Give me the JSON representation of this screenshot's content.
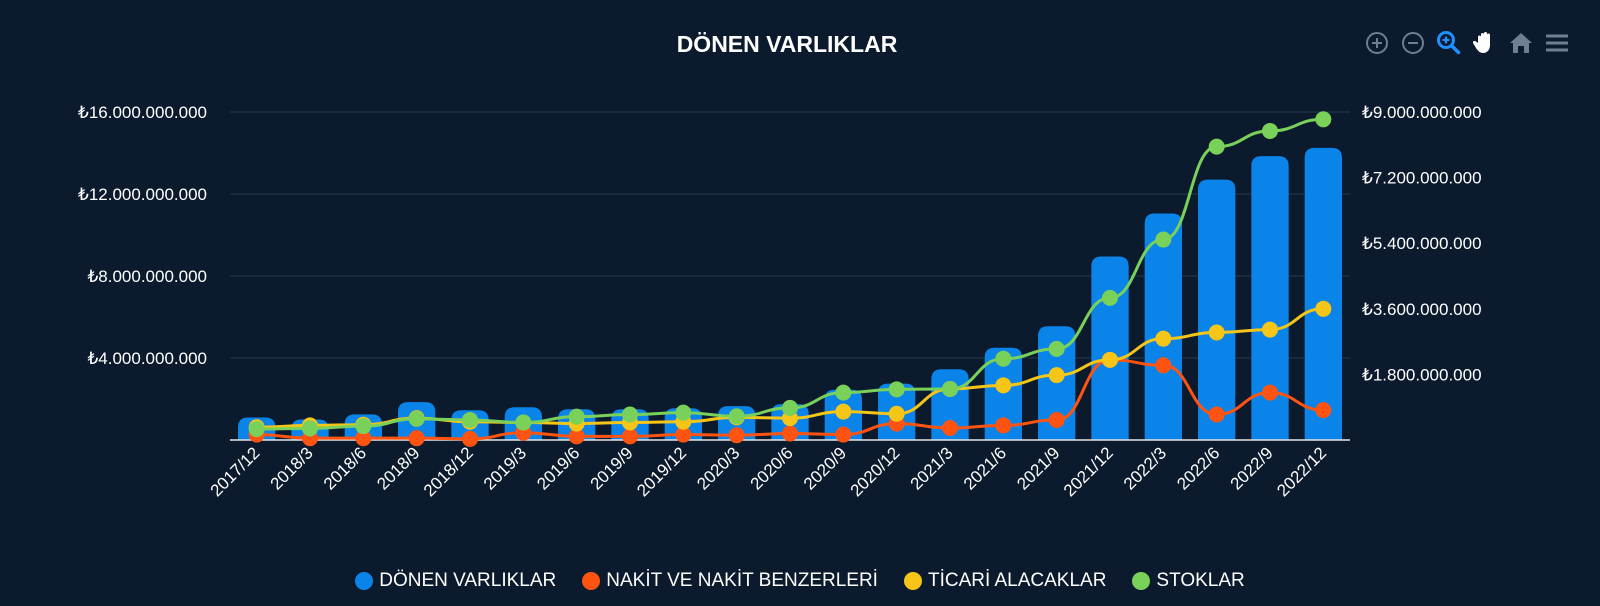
{
  "chart_data": {
    "type": "bar",
    "title": "DÖNEN VARLIKLAR",
    "categories": [
      "2017/12",
      "2018/3",
      "2018/6",
      "2018/9",
      "2018/12",
      "2019/3",
      "2019/6",
      "2019/9",
      "2019/12",
      "2020/3",
      "2020/6",
      "2020/9",
      "2020/12",
      "2021/3",
      "2021/6",
      "2021/9",
      "2021/12",
      "2022/3",
      "2022/6",
      "2022/9",
      "2022/12"
    ],
    "left_axis": {
      "min": 0,
      "max": 16000000000,
      "ticks": [
        "₺4.000.000.000",
        "₺8.000.000.000",
        "₺12.000.000.000",
        "₺16.000.000.000"
      ],
      "tick_values": [
        4000000000,
        8000000000,
        12000000000,
        16000000000
      ]
    },
    "right_axis": {
      "min": 0,
      "max": 9000000000,
      "ticks": [
        "₺1.800.000.000",
        "₺3.600.000.000",
        "₺5.400.000.000",
        "₺7.200.000.000",
        "₺9.000.000.000"
      ],
      "tick_values": [
        1800000000,
        3600000000,
        5400000000,
        7200000000,
        9000000000
      ]
    },
    "grid": true,
    "legend_position": "bottom-center",
    "series": [
      {
        "name": "DÖNEN VARLIKLAR",
        "type": "bar",
        "axis": "left",
        "color": "#0a84e8",
        "values": [
          1100000000,
          1000000000,
          1250000000,
          1850000000,
          1450000000,
          1600000000,
          1500000000,
          1500000000,
          1550000000,
          1650000000,
          1750000000,
          2450000000,
          2750000000,
          3450000000,
          4500000000,
          5550000000,
          8950000000,
          11050000000,
          12700000000,
          13850000000,
          14250000000
        ]
      },
      {
        "name": "NAKİT VE NAKİT BENZERLERİ",
        "type": "line",
        "axis": "right",
        "color": "#ff5411",
        "values": [
          150000000,
          50000000,
          50000000,
          50000000,
          30000000,
          200000000,
          100000000,
          100000000,
          150000000,
          130000000,
          180000000,
          150000000,
          450000000,
          330000000,
          400000000,
          550000000,
          2200000000,
          2050000000,
          700000000,
          1300000000,
          820000000
        ]
      },
      {
        "name": "TİCARİ ALACAKLAR",
        "type": "line",
        "axis": "right",
        "color": "#f5c518",
        "values": [
          350000000,
          400000000,
          420000000,
          600000000,
          500000000,
          480000000,
          450000000,
          480000000,
          500000000,
          620000000,
          600000000,
          780000000,
          720000000,
          1400000000,
          1500000000,
          1780000000,
          2200000000,
          2780000000,
          2950000000,
          3030000000,
          3600000000
        ]
      },
      {
        "name": "STOKLAR",
        "type": "line",
        "axis": "right",
        "color": "#7ad15a",
        "values": [
          300000000,
          320000000,
          380000000,
          580000000,
          550000000,
          480000000,
          640000000,
          700000000,
          750000000,
          650000000,
          880000000,
          1300000000,
          1390000000,
          1400000000,
          2230000000,
          2500000000,
          3900000000,
          5500000000,
          8050000000,
          8480000000,
          8800000000
        ]
      }
    ]
  },
  "toolbar": [
    {
      "name": "zoom-in-icon",
      "color": "#6e7f91"
    },
    {
      "name": "zoom-out-icon",
      "color": "#6e7f91"
    },
    {
      "name": "selection-zoom-icon",
      "color": "#1e90ff"
    },
    {
      "name": "pan-hand-icon",
      "color": "#ffffff"
    },
    {
      "name": "home-reset-icon",
      "color": "#6e7f91"
    },
    {
      "name": "menu-icon",
      "color": "#6e7f91"
    }
  ]
}
